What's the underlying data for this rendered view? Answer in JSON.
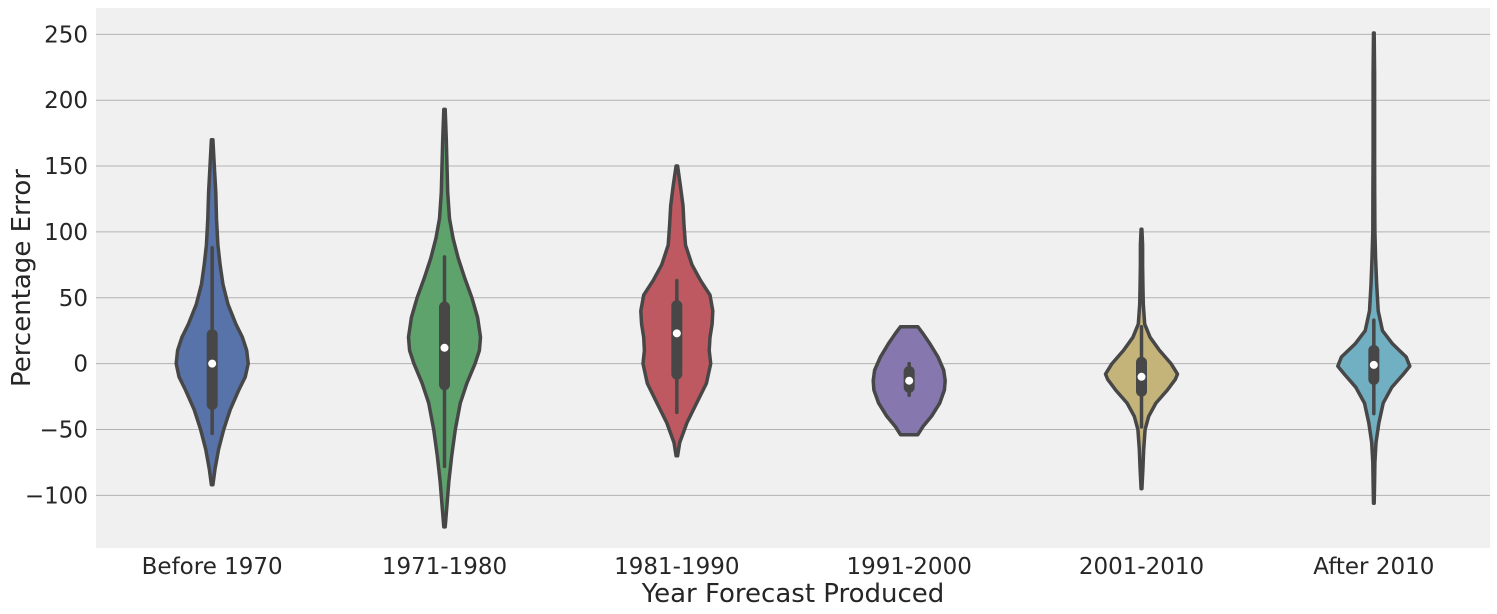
{
  "chart_data": {
    "type": "violin",
    "title": "",
    "xlabel": "Year Forecast Produced",
    "ylabel": "Percentage Error",
    "ylim": [
      -140,
      270
    ],
    "yticks": [
      -100,
      -50,
      0,
      50,
      100,
      150,
      200,
      250
    ],
    "ytick_labels": [
      "−100",
      "−50",
      "0",
      "50",
      "100",
      "150",
      "200",
      "250"
    ],
    "grid": "horizontal",
    "background": "#f0f0f0",
    "grid_color": "#b3b3b3",
    "outline_color": "#474747",
    "categories": [
      "Before 1970",
      "1971-1980",
      "1981-1990",
      "1991-2000",
      "2001-2010",
      "After 2010"
    ],
    "series": [
      {
        "category": "Before 1970",
        "color": "#5773aa",
        "density": [
          [
            -92,
            0.02
          ],
          [
            -80,
            0.08
          ],
          [
            -65,
            0.18
          ],
          [
            -50,
            0.32
          ],
          [
            -35,
            0.5
          ],
          [
            -20,
            0.74
          ],
          [
            -10,
            0.92
          ],
          [
            0,
            1.0
          ],
          [
            10,
            0.96
          ],
          [
            20,
            0.84
          ],
          [
            30,
            0.66
          ],
          [
            45,
            0.44
          ],
          [
            60,
            0.3
          ],
          [
            75,
            0.22
          ],
          [
            90,
            0.16
          ],
          [
            110,
            0.12
          ],
          [
            130,
            0.1
          ],
          [
            150,
            0.06
          ],
          [
            170,
            0.02
          ]
        ],
        "whisker": [
          -53,
          88
        ],
        "q1": -31,
        "median": 0,
        "q3": 22
      },
      {
        "category": "1971-1980",
        "color": "#5fa36c",
        "density": [
          [
            -124,
            0.02
          ],
          [
            -110,
            0.06
          ],
          [
            -90,
            0.12
          ],
          [
            -70,
            0.2
          ],
          [
            -50,
            0.3
          ],
          [
            -30,
            0.44
          ],
          [
            -15,
            0.62
          ],
          [
            0,
            0.85
          ],
          [
            10,
            0.97
          ],
          [
            20,
            1.0
          ],
          [
            35,
            0.92
          ],
          [
            50,
            0.76
          ],
          [
            65,
            0.56
          ],
          [
            80,
            0.38
          ],
          [
            95,
            0.24
          ],
          [
            110,
            0.14
          ],
          [
            130,
            0.09
          ],
          [
            150,
            0.07
          ],
          [
            170,
            0.05
          ],
          [
            193,
            0.02
          ]
        ],
        "whisker": [
          -78,
          81
        ],
        "q1": -16,
        "median": 12,
        "q3": 43
      },
      {
        "category": "1981-1990",
        "color": "#bf5961",
        "density": [
          [
            -70,
            0.02
          ],
          [
            -60,
            0.08
          ],
          [
            -45,
            0.28
          ],
          [
            -30,
            0.55
          ],
          [
            -15,
            0.82
          ],
          [
            0,
            0.94
          ],
          [
            10,
            0.9
          ],
          [
            20,
            0.92
          ],
          [
            30,
            0.98
          ],
          [
            40,
            1.0
          ],
          [
            52,
            0.92
          ],
          [
            63,
            0.66
          ],
          [
            75,
            0.42
          ],
          [
            90,
            0.24
          ],
          [
            105,
            0.2
          ],
          [
            120,
            0.17
          ],
          [
            135,
            0.1
          ],
          [
            150,
            0.02
          ]
        ],
        "whisker": [
          -37,
          63
        ],
        "q1": -8,
        "median": 23,
        "q3": 44
      },
      {
        "category": "1991-2000",
        "color": "#8677ae",
        "density": [
          [
            -54,
            0.24
          ],
          [
            -48,
            0.38
          ],
          [
            -40,
            0.62
          ],
          [
            -30,
            0.85
          ],
          [
            -20,
            0.98
          ],
          [
            -13,
            1.0
          ],
          [
            -5,
            0.96
          ],
          [
            5,
            0.8
          ],
          [
            15,
            0.58
          ],
          [
            23,
            0.38
          ],
          [
            28,
            0.24
          ]
        ],
        "whisker": [
          -24,
          0
        ],
        "q1": -18,
        "median": -13,
        "q3": -6
      },
      {
        "category": "2001-2010",
        "color": "#c4b47a",
        "density": [
          [
            -95,
            0.01
          ],
          [
            -80,
            0.04
          ],
          [
            -65,
            0.06
          ],
          [
            -50,
            0.1
          ],
          [
            -40,
            0.2
          ],
          [
            -30,
            0.4
          ],
          [
            -20,
            0.72
          ],
          [
            -12,
            0.94
          ],
          [
            -8,
            1.0
          ],
          [
            0,
            0.82
          ],
          [
            10,
            0.5
          ],
          [
            20,
            0.24
          ],
          [
            30,
            0.09
          ],
          [
            45,
            0.05
          ],
          [
            60,
            0.04
          ],
          [
            75,
            0.03
          ],
          [
            90,
            0.03
          ],
          [
            102,
            0.01
          ]
        ],
        "whisker": [
          -48,
          28
        ],
        "q1": -21,
        "median": -10,
        "q3": 1
      },
      {
        "category": "After 2010",
        "color": "#71afc3",
        "density": [
          [
            -106,
            0.01
          ],
          [
            -90,
            0.02
          ],
          [
            -75,
            0.03
          ],
          [
            -60,
            0.06
          ],
          [
            -45,
            0.14
          ],
          [
            -30,
            0.26
          ],
          [
            -18,
            0.5
          ],
          [
            -8,
            0.82
          ],
          [
            -2,
            1.0
          ],
          [
            5,
            0.9
          ],
          [
            15,
            0.52
          ],
          [
            25,
            0.24
          ],
          [
            40,
            0.12
          ],
          [
            60,
            0.08
          ],
          [
            80,
            0.05
          ],
          [
            100,
            0.03
          ],
          [
            130,
            0.025
          ],
          [
            160,
            0.02
          ],
          [
            190,
            0.02
          ],
          [
            220,
            0.02
          ],
          [
            251,
            0.01
          ]
        ],
        "whisker": [
          -38,
          33
        ],
        "q1": -12,
        "median": -1,
        "q3": 10
      }
    ]
  }
}
